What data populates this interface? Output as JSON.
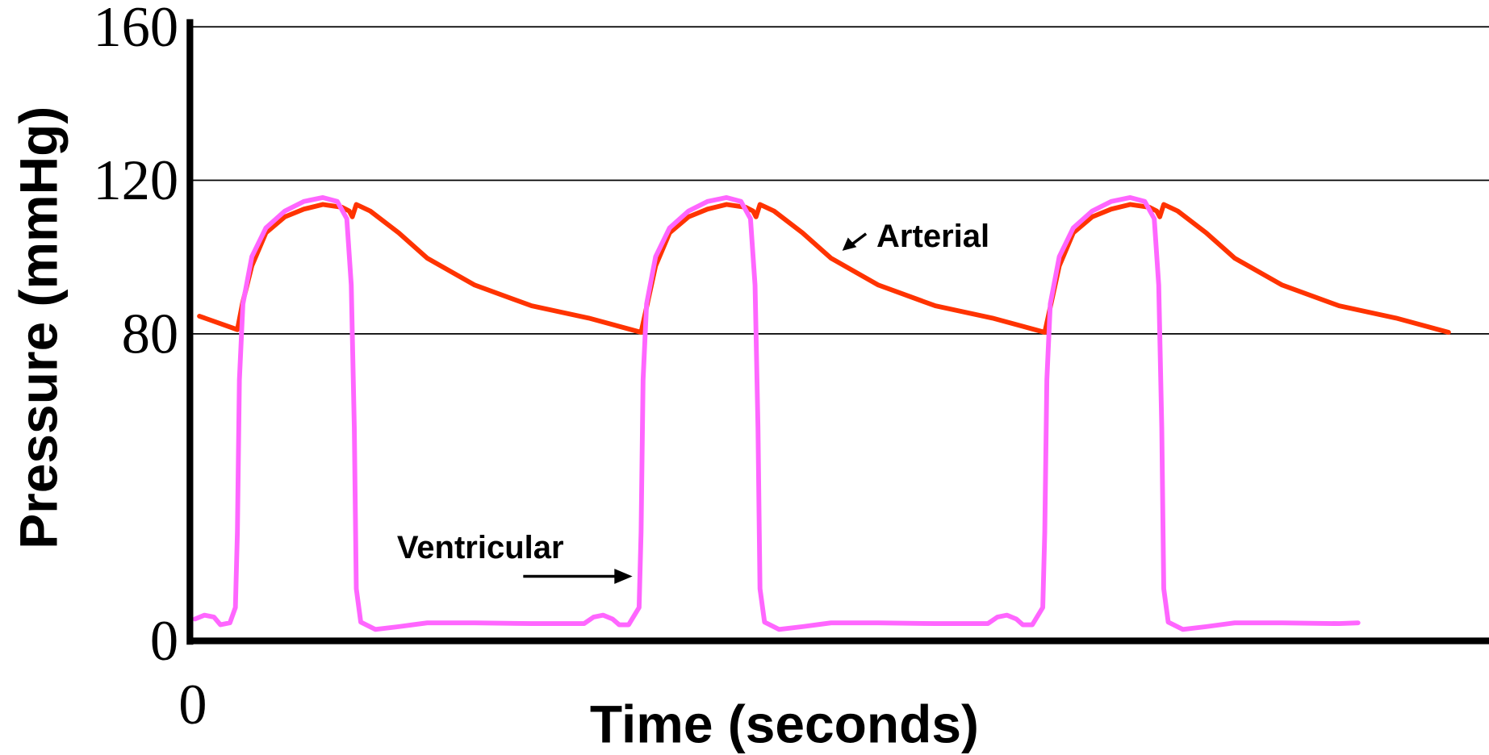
{
  "chart_data": {
    "type": "line",
    "xlabel": "Time (seconds)",
    "ylabel": "Pressure (mmHg)",
    "xlim": [
      0,
      2.6
    ],
    "xticks": [
      0
    ],
    "ylim": [
      0,
      160
    ],
    "yticks": [
      0,
      80,
      120,
      160
    ],
    "grid": true,
    "annotations": [
      "Arterial",
      "Ventricular"
    ],
    "series": [
      {
        "name": "Arterial",
        "color": "#ff3300",
        "x": [
          0.019,
          0.095,
          0.105,
          0.124,
          0.152,
          0.19,
          0.228,
          0.266,
          0.304,
          0.319,
          0.325,
          0.333,
          0.361,
          0.418,
          0.475,
          0.57,
          0.684,
          0.798,
          0.903,
          0.932,
          0.96,
          0.998,
          1.036,
          1.074,
          1.112,
          1.127,
          1.133,
          1.141,
          1.169,
          1.226,
          1.283,
          1.378,
          1.492,
          1.606,
          1.711,
          1.74,
          1.768,
          1.806,
          1.844,
          1.882,
          1.92,
          1.935,
          1.941,
          1.949,
          1.977,
          2.034,
          2.091,
          2.186,
          2.3,
          2.414,
          2.519
        ],
        "values": [
          84.6,
          81.1,
          87.8,
          97.7,
          106.3,
          110.5,
          112.5,
          113.7,
          113.0,
          112.0,
          110.5,
          113.7,
          112.0,
          106.3,
          99.7,
          92.7,
          87.3,
          84.1,
          80.4,
          97.7,
          106.3,
          110.5,
          112.5,
          113.7,
          113.0,
          112.0,
          110.5,
          113.7,
          112.0,
          106.3,
          99.7,
          92.7,
          87.3,
          84.1,
          80.4,
          97.7,
          106.3,
          110.5,
          112.5,
          113.7,
          113.0,
          112.0,
          110.5,
          113.7,
          112.0,
          106.3,
          99.7,
          92.7,
          87.3,
          84.1,
          80.4
        ]
      },
      {
        "name": "Ventricular",
        "color": "#ff66ff",
        "x": [
          0.01,
          0.029,
          0.048,
          0.061,
          0.08,
          0.091,
          0.095,
          0.099,
          0.106,
          0.124,
          0.152,
          0.19,
          0.228,
          0.266,
          0.295,
          0.314,
          0.323,
          0.329,
          0.333,
          0.342,
          0.371,
          0.418,
          0.475,
          0.57,
          0.684,
          0.789,
          0.808,
          0.827,
          0.846,
          0.859,
          0.878,
          0.899,
          0.903,
          0.907,
          0.914,
          0.932,
          0.96,
          0.998,
          1.036,
          1.074,
          1.103,
          1.122,
          1.131,
          1.137,
          1.141,
          1.15,
          1.179,
          1.226,
          1.283,
          1.378,
          1.492,
          1.597,
          1.616,
          1.635,
          1.654,
          1.667,
          1.686,
          1.707,
          1.711,
          1.715,
          1.722,
          1.74,
          1.768,
          1.806,
          1.844,
          1.882,
          1.911,
          1.93,
          1.939,
          1.945,
          1.949,
          1.958,
          1.987,
          2.034,
          2.091,
          2.186,
          2.3,
          2.338
        ],
        "values": [
          5.7,
          6.7,
          6.2,
          4.2,
          4.7,
          8.7,
          28.4,
          68.0,
          87.8,
          100.1,
          107.6,
          112.0,
          114.5,
          115.5,
          114.5,
          110.0,
          92.7,
          55.6,
          13.6,
          4.9,
          3.0,
          3.7,
          4.7,
          4.7,
          4.5,
          4.5,
          6.2,
          6.7,
          5.7,
          4.2,
          4.2,
          8.7,
          28.4,
          68.0,
          87.8,
          100.1,
          107.6,
          112.0,
          114.5,
          115.5,
          114.5,
          110.0,
          92.7,
          55.6,
          13.6,
          4.9,
          3.0,
          3.7,
          4.7,
          4.7,
          4.5,
          4.5,
          6.2,
          6.7,
          5.7,
          4.2,
          4.2,
          8.7,
          28.4,
          68.0,
          87.8,
          100.1,
          107.6,
          112.0,
          114.5,
          115.5,
          114.5,
          110.0,
          92.7,
          55.6,
          13.6,
          4.9,
          3.0,
          3.7,
          4.7,
          4.7,
          4.5,
          4.7
        ]
      }
    ]
  }
}
